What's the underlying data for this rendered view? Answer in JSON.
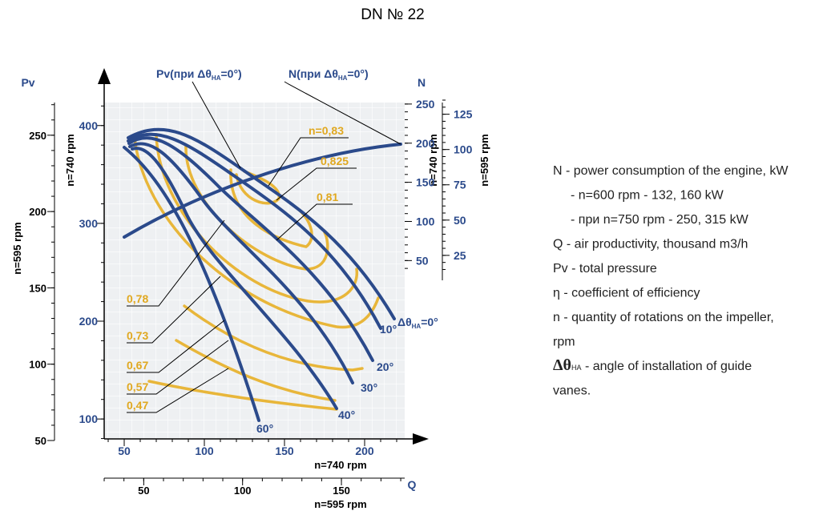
{
  "title": "DN № 22",
  "axes": {
    "pv_595": {
      "label": "Pv",
      "rpm": "n=595 rpm",
      "lim": [
        50,
        273
      ],
      "ticks": [
        50,
        100,
        150,
        200,
        250
      ]
    },
    "pv_740": {
      "rpm": "n=740 rpm",
      "lim": [
        78,
        426
      ],
      "ticks": [
        100,
        200,
        300,
        400
      ]
    },
    "n_740": {
      "label": "N",
      "rpm": "n=740 rpm",
      "lim": [
        35,
        255
      ],
      "ticks": [
        50,
        100,
        150,
        200,
        250
      ]
    },
    "n_595": {
      "rpm": "n=595 rpm",
      "lim": [
        13,
        135
      ],
      "ticks": [
        25,
        50,
        75,
        100,
        125
      ]
    },
    "q_740": {
      "label": "Q",
      "rpm": "n=740 rpm",
      "lim": [
        37.5,
        225
      ],
      "ticks": [
        50,
        100,
        150,
        200
      ]
    },
    "q_595": {
      "rpm": "n=595 rpm",
      "lim": [
        30,
        182
      ],
      "ticks": [
        50,
        100,
        150
      ]
    }
  },
  "curve_labels": {
    "pv": {
      "pre": "Pv(при Δθ",
      "sub": "НА",
      "post": "=0°)"
    },
    "n": {
      "pre": "N(при Δθ",
      "sub": "НА",
      "post": "=0°)"
    },
    "angle_0": {
      "pre": "Δθ",
      "sub": "НА",
      "post": "=0°"
    },
    "angles": [
      "10°",
      "20°",
      "30°",
      "40°",
      "60°"
    ],
    "efficiency": [
      "n=0,83",
      "0,825",
      "0,81",
      "0,78",
      "0,73",
      "0,67",
      "0,57",
      "0,47"
    ]
  },
  "legend": [
    "N - power consumption of the engine, kW",
    "- n=600 rpm - 132, 160 kW",
    "- при n=750 rpm - 250, 315 kW",
    "Q - air productivity, thousand m3/h",
    "Pv - total pressure",
    "η - coefficient of efficiency",
    "n - quantity of rotations on the impeller,",
    "rpm",
    {
      "sym": "Δθ",
      "sub": "НА",
      "text": " - angle of installation of guide"
    },
    "vanes."
  ]
}
